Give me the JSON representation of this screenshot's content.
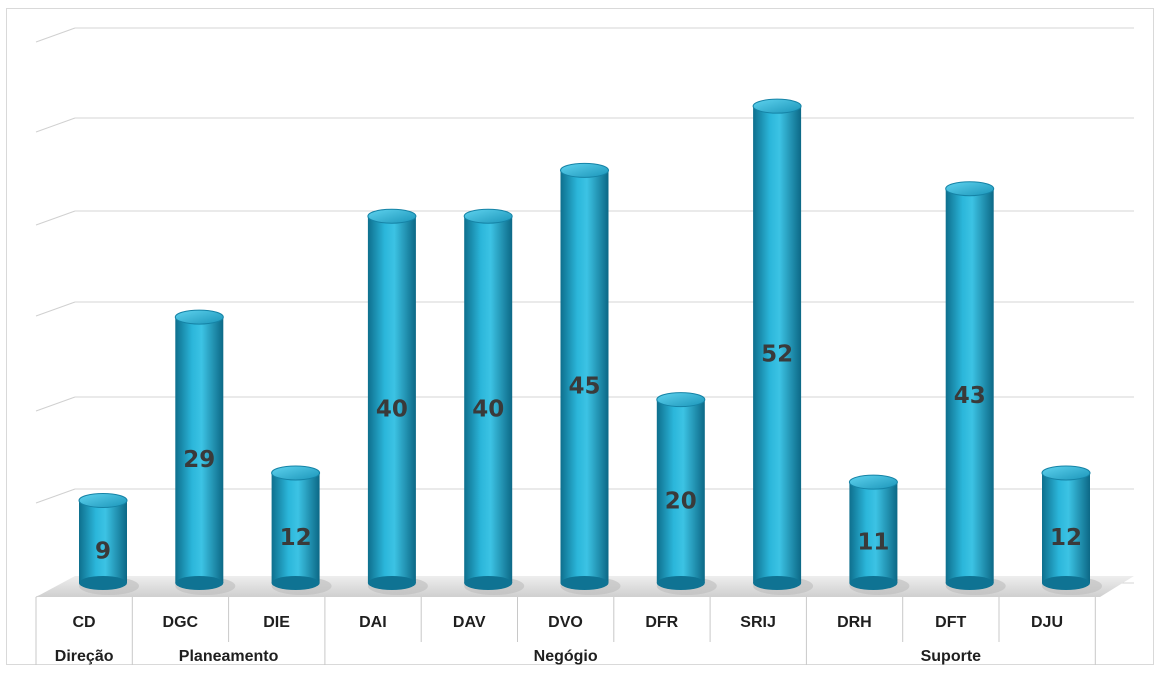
{
  "chart_data": {
    "type": "bar",
    "title": "",
    "xlabel": "",
    "ylabel": "",
    "categories": [
      "CD",
      "DGC",
      "DIE",
      "DAI",
      "DAV",
      "DVO",
      "DFR",
      "SRIJ",
      "DRH",
      "DFT",
      "DJU"
    ],
    "groups": [
      {
        "label": "Direção",
        "categories": [
          "CD"
        ]
      },
      {
        "label": "Planeamento",
        "categories": [
          "DGC",
          "DIE"
        ]
      },
      {
        "label": "Negógio",
        "categories": [
          "DAI",
          "DAV",
          "DVO",
          "DFR",
          "SRIJ"
        ]
      },
      {
        "label": "Suporte",
        "categories": [
          "DRH",
          "DFT",
          "DJU"
        ]
      }
    ],
    "values": [
      9,
      29,
      12,
      40,
      40,
      45,
      20,
      52,
      11,
      43,
      12
    ],
    "ylim": [
      0,
      60
    ],
    "grid": true,
    "legend": "none",
    "bar_color": "#1fa3c8"
  }
}
